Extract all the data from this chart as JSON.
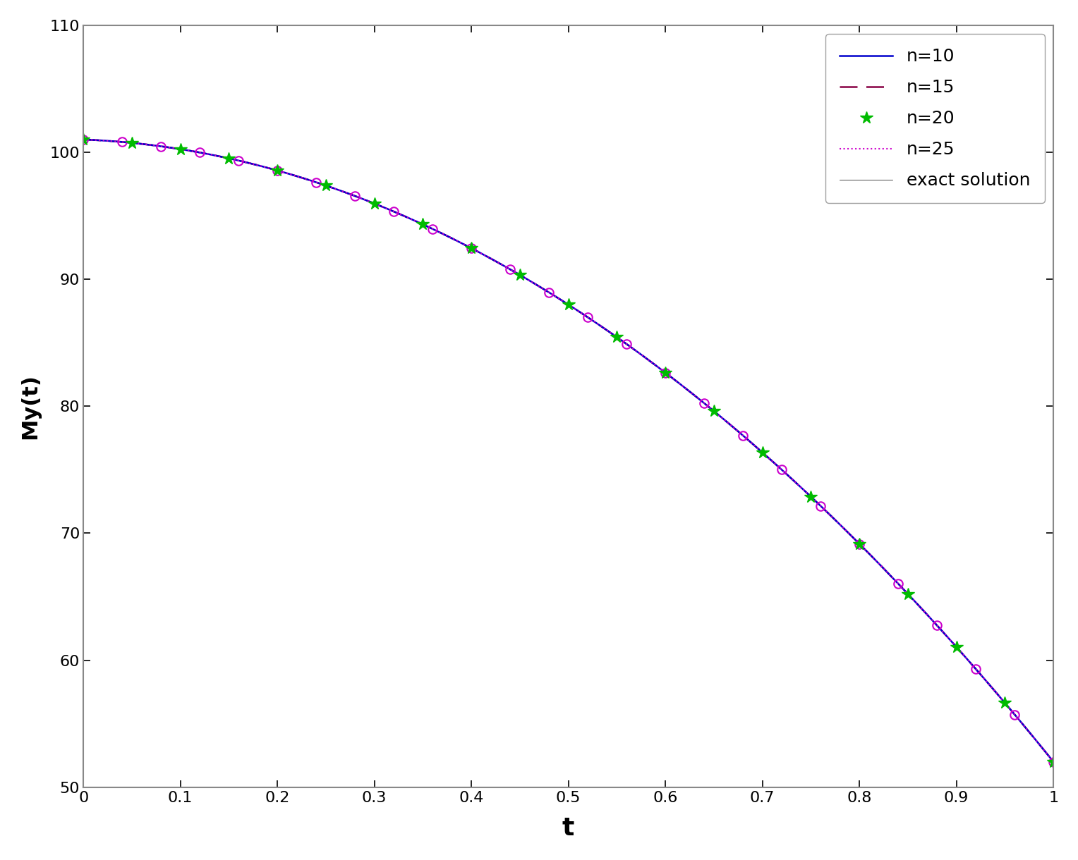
{
  "title": "",
  "xlabel": "t",
  "ylabel": "My(t)",
  "xlim": [
    0,
    1
  ],
  "ylim": [
    50,
    110
  ],
  "yticks": [
    50,
    60,
    70,
    80,
    90,
    100,
    110
  ],
  "xticks": [
    0,
    0.1,
    0.2,
    0.3,
    0.4,
    0.5,
    0.6,
    0.7,
    0.8,
    0.9,
    1.0
  ],
  "n10_color": "#0000CC",
  "n15_color": "#880044",
  "n20_color": "#00BB00",
  "n25_color": "#CC00CC",
  "exact_color": "#000000",
  "legend_labels": [
    "n=10",
    "n=15",
    "n=20",
    "n=25",
    "exact solution"
  ],
  "background_color": "#ffffff",
  "axis_color": "#888888",
  "func_a": -0.032,
  "func_b": -0.632,
  "func_scale": 100.0
}
